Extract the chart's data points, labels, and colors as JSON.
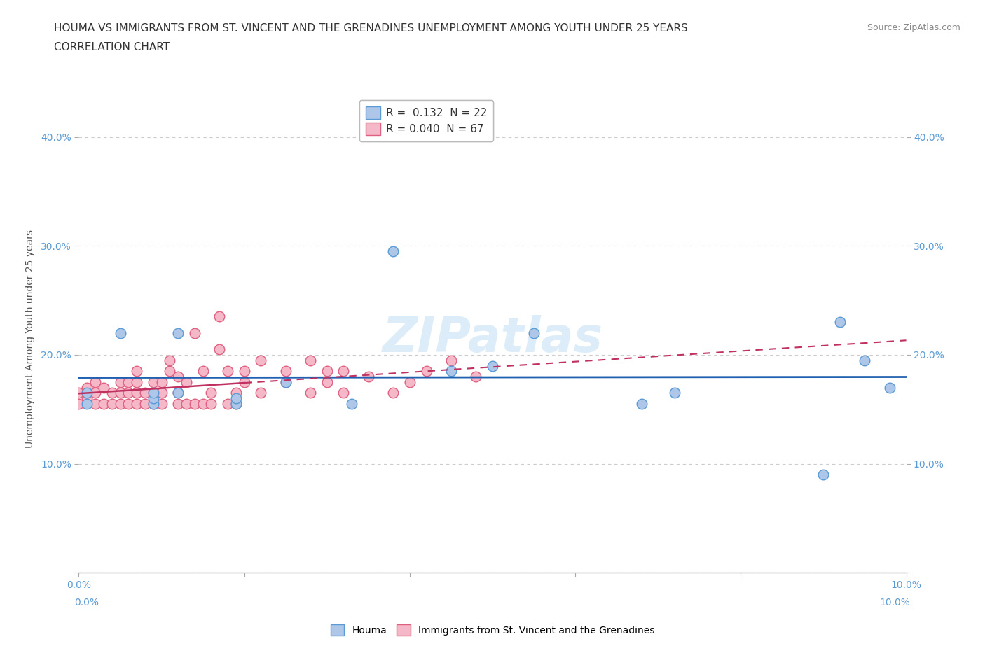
{
  "title_line1": "HOUMA VS IMMIGRANTS FROM ST. VINCENT AND THE GRENADINES UNEMPLOYMENT AMONG YOUTH UNDER 25 YEARS",
  "title_line2": "CORRELATION CHART",
  "source": "Source: ZipAtlas.com",
  "ylabel": "Unemployment Among Youth under 25 years",
  "xlim": [
    0.0,
    0.1
  ],
  "ylim": [
    0.0,
    0.43
  ],
  "xticks": [
    0.0,
    0.02,
    0.04,
    0.06,
    0.08,
    0.1
  ],
  "yticks": [
    0.0,
    0.1,
    0.2,
    0.3,
    0.4
  ],
  "xtick_labels": [
    "0.0%",
    "",
    "",
    "",
    "",
    "10.0%"
  ],
  "ytick_labels": [
    "",
    "10.0%",
    "20.0%",
    "30.0%",
    "40.0%"
  ],
  "houma_color": "#aec6e8",
  "houma_edge": "#5b9bd5",
  "svg_color": "#f4b8c8",
  "svg_edge": "#e06080",
  "legend_R1": "0.132",
  "legend_N1": "22",
  "legend_R2": "0.040",
  "legend_N2": "67",
  "watermark": "ZIPatlas",
  "houma_x": [
    0.001,
    0.001,
    0.005,
    0.009,
    0.009,
    0.009,
    0.012,
    0.012,
    0.019,
    0.019,
    0.025,
    0.033,
    0.038,
    0.045,
    0.05,
    0.055,
    0.068,
    0.072,
    0.09,
    0.092,
    0.095,
    0.098
  ],
  "houma_y": [
    0.155,
    0.165,
    0.22,
    0.155,
    0.16,
    0.165,
    0.22,
    0.165,
    0.155,
    0.16,
    0.175,
    0.155,
    0.295,
    0.185,
    0.19,
    0.22,
    0.155,
    0.165,
    0.09,
    0.23,
    0.195,
    0.17
  ],
  "svg_x": [
    0.0,
    0.0,
    0.001,
    0.001,
    0.001,
    0.002,
    0.002,
    0.002,
    0.003,
    0.003,
    0.004,
    0.004,
    0.005,
    0.005,
    0.005,
    0.006,
    0.006,
    0.006,
    0.007,
    0.007,
    0.007,
    0.007,
    0.008,
    0.008,
    0.009,
    0.009,
    0.009,
    0.01,
    0.01,
    0.01,
    0.011,
    0.011,
    0.012,
    0.012,
    0.012,
    0.013,
    0.013,
    0.014,
    0.014,
    0.015,
    0.015,
    0.016,
    0.016,
    0.017,
    0.017,
    0.018,
    0.018,
    0.019,
    0.019,
    0.02,
    0.02,
    0.022,
    0.022,
    0.025,
    0.025,
    0.028,
    0.028,
    0.03,
    0.03,
    0.032,
    0.032,
    0.035,
    0.038,
    0.04,
    0.042,
    0.045,
    0.048
  ],
  "svg_y": [
    0.155,
    0.165,
    0.16,
    0.165,
    0.17,
    0.155,
    0.165,
    0.175,
    0.155,
    0.17,
    0.155,
    0.165,
    0.155,
    0.165,
    0.175,
    0.155,
    0.165,
    0.175,
    0.155,
    0.165,
    0.175,
    0.185,
    0.155,
    0.165,
    0.155,
    0.165,
    0.175,
    0.155,
    0.165,
    0.175,
    0.185,
    0.195,
    0.155,
    0.165,
    0.18,
    0.155,
    0.175,
    0.155,
    0.22,
    0.155,
    0.185,
    0.155,
    0.165,
    0.205,
    0.235,
    0.155,
    0.185,
    0.155,
    0.165,
    0.175,
    0.185,
    0.165,
    0.195,
    0.175,
    0.185,
    0.165,
    0.195,
    0.175,
    0.185,
    0.165,
    0.185,
    0.18,
    0.165,
    0.175,
    0.185,
    0.195,
    0.18
  ]
}
